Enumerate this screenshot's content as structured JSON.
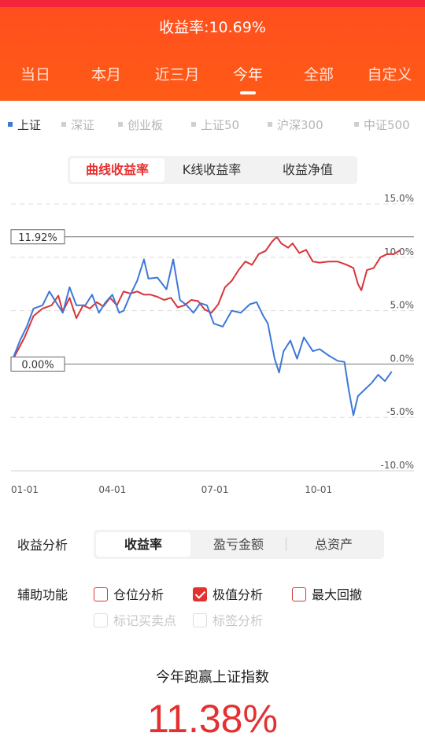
{
  "header": {
    "title": "收益率:10.69%"
  },
  "period_tabs": [
    {
      "label": "当日"
    },
    {
      "label": "本月"
    },
    {
      "label": "近三月"
    },
    {
      "label": "今年"
    },
    {
      "label": "全部"
    },
    {
      "label": "自定义"
    }
  ],
  "active_period": "今年",
  "index_legend": [
    {
      "label": "上证",
      "active": true
    },
    {
      "label": "深证",
      "active": false
    },
    {
      "label": "创业板",
      "active": false
    },
    {
      "label": "上证50",
      "active": false
    },
    {
      "label": "沪深300",
      "active": false
    },
    {
      "label": "中证500",
      "active": false
    }
  ],
  "chart_tabs": [
    {
      "label": "曲线收益率",
      "active": true
    },
    {
      "label": "K线收益率",
      "active": false
    },
    {
      "label": "收益净值",
      "active": false
    }
  ],
  "chart_data": {
    "type": "line",
    "y_ticks": [
      "15.0%",
      "10.0%",
      "5.0%",
      "0.0%",
      "-5.0%",
      "-10.0%"
    ],
    "x_ticks": [
      "01-01",
      "04-01",
      "07-01",
      "10-01"
    ],
    "ylim": [
      -10,
      15
    ],
    "grid": true,
    "marker_labels": {
      "max": "11.92%",
      "zero": "0.00%"
    },
    "colors": {
      "account": "#d8353a",
      "index": "#3d78d8"
    },
    "series": [
      {
        "key": "account",
        "points": [
          [
            2,
            0.5
          ],
          [
            12,
            2.5
          ],
          [
            20,
            4.5
          ],
          [
            28,
            5.2
          ],
          [
            36,
            5.5
          ],
          [
            42,
            6.4
          ],
          [
            46,
            4.9
          ],
          [
            52,
            6.2
          ],
          [
            58,
            4.3
          ],
          [
            64,
            5.5
          ],
          [
            70,
            5.2
          ],
          [
            76,
            5.8
          ],
          [
            82,
            5.4
          ],
          [
            88,
            6.2
          ],
          [
            94,
            5.5
          ],
          [
            100,
            6.8
          ],
          [
            106,
            6.6
          ],
          [
            112,
            6.8
          ],
          [
            118,
            6.5
          ],
          [
            124,
            6.5
          ],
          [
            130,
            6.3
          ],
          [
            136,
            6.0
          ],
          [
            142,
            6.2
          ],
          [
            148,
            5.3
          ],
          [
            154,
            5.5
          ],
          [
            160,
            6.0
          ],
          [
            166,
            5.9
          ],
          [
            172,
            5.1
          ],
          [
            178,
            4.8
          ],
          [
            184,
            5.6
          ],
          [
            190,
            7.2
          ],
          [
            196,
            7.8
          ],
          [
            202,
            8.8
          ],
          [
            208,
            9.6
          ],
          [
            214,
            9.3
          ],
          [
            220,
            10.3
          ],
          [
            226,
            10.6
          ],
          [
            232,
            11.5
          ],
          [
            236,
            11.9
          ],
          [
            240,
            11.3
          ],
          [
            246,
            10.9
          ],
          [
            250,
            11.3
          ],
          [
            256,
            10.4
          ],
          [
            262,
            10.7
          ],
          [
            268,
            9.6
          ],
          [
            274,
            9.5
          ],
          [
            282,
            9.6
          ],
          [
            290,
            9.6
          ],
          [
            298,
            9.3
          ],
          [
            304,
            9.0
          ],
          [
            308,
            7.5
          ],
          [
            311,
            6.9
          ],
          [
            316,
            8.8
          ],
          [
            322,
            9.0
          ],
          [
            328,
            10.0
          ],
          [
            334,
            10.3
          ],
          [
            340,
            10.3
          ],
          [
            346,
            10.69
          ]
        ]
      },
      {
        "key": "index",
        "points": [
          [
            2,
            0.6
          ],
          [
            8,
            2.2
          ],
          [
            14,
            3.5
          ],
          [
            20,
            5.2
          ],
          [
            28,
            5.5
          ],
          [
            34,
            6.8
          ],
          [
            40,
            5.8
          ],
          [
            46,
            4.8
          ],
          [
            52,
            7.2
          ],
          [
            58,
            5.5
          ],
          [
            66,
            5.5
          ],
          [
            72,
            6.5
          ],
          [
            78,
            4.8
          ],
          [
            84,
            5.8
          ],
          [
            90,
            6.5
          ],
          [
            96,
            4.8
          ],
          [
            100,
            5.0
          ],
          [
            106,
            6.5
          ],
          [
            112,
            7.8
          ],
          [
            118,
            9.8
          ],
          [
            122,
            8.0
          ],
          [
            130,
            8.1
          ],
          [
            138,
            7.0
          ],
          [
            144,
            9.8
          ],
          [
            150,
            6.0
          ],
          [
            156,
            5.5
          ],
          [
            162,
            4.8
          ],
          [
            168,
            5.7
          ],
          [
            174,
            5.5
          ],
          [
            180,
            3.8
          ],
          [
            188,
            3.5
          ],
          [
            196,
            5.0
          ],
          [
            204,
            4.8
          ],
          [
            212,
            5.6
          ],
          [
            218,
            5.8
          ],
          [
            224,
            4.5
          ],
          [
            228,
            3.8
          ],
          [
            234,
            0.5
          ],
          [
            238,
            -0.8
          ],
          [
            242,
            1.2
          ],
          [
            248,
            2.2
          ],
          [
            254,
            0.5
          ],
          [
            260,
            2.5
          ],
          [
            268,
            1.2
          ],
          [
            274,
            1.4
          ],
          [
            282,
            0.8
          ],
          [
            290,
            0.3
          ],
          [
            296,
            0.2
          ],
          [
            300,
            -2.5
          ],
          [
            304,
            -4.8
          ],
          [
            308,
            -3.0
          ],
          [
            314,
            -2.4
          ],
          [
            320,
            -1.8
          ],
          [
            326,
            -1.0
          ],
          [
            332,
            -1.6
          ],
          [
            338,
            -0.7
          ]
        ]
      }
    ]
  },
  "analysis": {
    "label": "收益分析",
    "options": [
      {
        "label": "收益率",
        "active": true
      },
      {
        "label": "盈亏金额",
        "active": false
      },
      {
        "label": "总资产",
        "active": false
      }
    ]
  },
  "aux": {
    "label": "辅助功能",
    "options": [
      {
        "label": "仓位分析",
        "checked": false,
        "enabled": true
      },
      {
        "label": "极值分析",
        "checked": true,
        "enabled": true
      },
      {
        "label": "最大回撤",
        "checked": false,
        "enabled": true
      },
      {
        "label": "标记买卖点",
        "checked": false,
        "enabled": false
      },
      {
        "label": "标签分析",
        "checked": false,
        "enabled": false
      }
    ]
  },
  "summary": {
    "title": "今年跑赢上证指数",
    "value": "11.38%"
  }
}
